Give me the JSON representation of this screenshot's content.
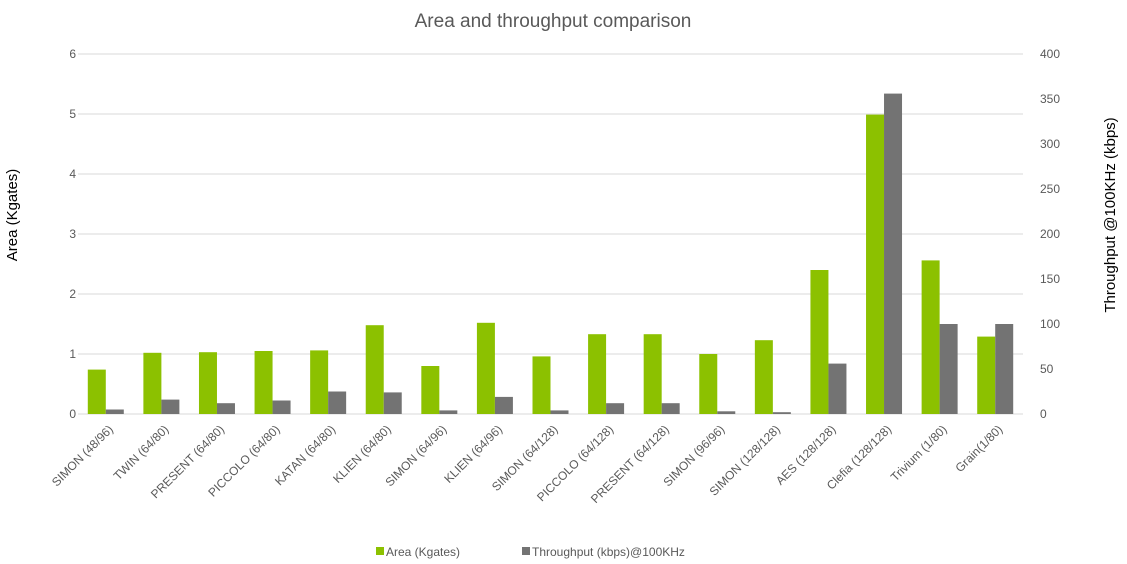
{
  "chart_data": {
    "type": "bar",
    "title": "Area and throughput comparison",
    "ylabel": "Area (Kgates)",
    "y2label": "Throughput @100KHz (kbps)",
    "ylim": [
      0,
      6
    ],
    "y2lim": [
      0,
      400
    ],
    "yticks": [
      "0",
      "1",
      "2",
      "3",
      "4",
      "5",
      "6"
    ],
    "y2ticks": [
      "0",
      "50",
      "100",
      "150",
      "200",
      "250",
      "300",
      "350",
      "400"
    ],
    "grid": true,
    "legend_position": "bottom",
    "categories": [
      "SIMON (48/96)",
      "TWIN (64/80)",
      "PRESENT (64/80)",
      "PICCOLO (64/80)",
      "KATAN (64/80)",
      "KLIEN (64/80)",
      "SIMON (64/96)",
      "KLIEN (64/96)",
      "SIMON (64/128)",
      "PICCOLO (64/128)",
      "PRESENT (64/128)",
      "SIMON (96/96)",
      "SIMON (128/128)",
      "AES (128/128)",
      "Clefia (128/128)",
      "Trivium (1/80)",
      "Grain(1/80)"
    ],
    "series": [
      {
        "name": "Area (Kgates)",
        "axis": "left",
        "color": "#8cc100",
        "values": [
          0.74,
          1.02,
          1.03,
          1.05,
          1.06,
          1.48,
          0.8,
          1.52,
          0.96,
          1.33,
          1.33,
          1.0,
          1.23,
          2.4,
          4.99,
          2.56,
          1.29
        ]
      },
      {
        "name": "Throughput (kbps)@100KHz",
        "axis": "right",
        "color": "#737373",
        "values": [
          5,
          16,
          12,
          15,
          25,
          24,
          4,
          19,
          4,
          12,
          12,
          3,
          2,
          56,
          356,
          100,
          100
        ]
      }
    ]
  }
}
